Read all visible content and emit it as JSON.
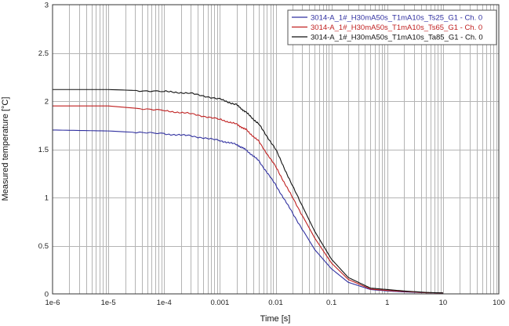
{
  "chart_data": {
    "type": "line",
    "title": "",
    "xlabel": "Time [s]",
    "ylabel": "Measured temperature [°C]",
    "x_scale": "log",
    "xlim": [
      1e-06,
      100
    ],
    "ylim": [
      0,
      3
    ],
    "grid": true,
    "legend_position": "top-right",
    "x_ticks": [
      {
        "v": 1e-06,
        "label": "1e-6"
      },
      {
        "v": 1e-05,
        "label": "1e-5"
      },
      {
        "v": 0.0001,
        "label": "1e-4"
      },
      {
        "v": 0.001,
        "label": "0.001"
      },
      {
        "v": 0.01,
        "label": "0.01"
      },
      {
        "v": 0.1,
        "label": "0.1"
      },
      {
        "v": 1,
        "label": "1"
      },
      {
        "v": 10,
        "label": "10"
      },
      {
        "v": 100,
        "label": "100"
      }
    ],
    "y_ticks": [
      {
        "v": 0,
        "label": "0"
      },
      {
        "v": 0.5,
        "label": "0.5"
      },
      {
        "v": 1,
        "label": "1"
      },
      {
        "v": 1.5,
        "label": "1.5"
      },
      {
        "v": 2,
        "label": "2"
      },
      {
        "v": 2.5,
        "label": "2.5"
      },
      {
        "v": 3,
        "label": "3"
      }
    ],
    "series": [
      {
        "name": "3014-A_1#_H30mA50s_T1mA10s_Ts25_G1 - Ch. 0",
        "color": "#3030a0",
        "points": [
          [
            1e-06,
            1.7
          ],
          [
            1e-05,
            1.69
          ],
          [
            0.0001,
            1.66
          ],
          [
            0.0003,
            1.64
          ],
          [
            0.001,
            1.59
          ],
          [
            0.002,
            1.55
          ],
          [
            0.003,
            1.49
          ],
          [
            0.005,
            1.38
          ],
          [
            0.01,
            1.13
          ],
          [
            0.02,
            0.84
          ],
          [
            0.05,
            0.46
          ],
          [
            0.1,
            0.26
          ],
          [
            0.2,
            0.12
          ],
          [
            0.5,
            0.045
          ],
          [
            1,
            0.03
          ],
          [
            2,
            0.02
          ],
          [
            5,
            0.012
          ],
          [
            10,
            0.01
          ]
        ]
      },
      {
        "name": "3014-A_1#_H30mA50s_T1mA10s_Ts65_G1 - Ch. 0",
        "color": "#c02020",
        "points": [
          [
            1e-06,
            1.95
          ],
          [
            1e-05,
            1.95
          ],
          [
            0.0001,
            1.9
          ],
          [
            0.0003,
            1.87
          ],
          [
            0.001,
            1.81
          ],
          [
            0.002,
            1.76
          ],
          [
            0.003,
            1.7
          ],
          [
            0.005,
            1.58
          ],
          [
            0.01,
            1.32
          ],
          [
            0.02,
            1.0
          ],
          [
            0.05,
            0.58
          ],
          [
            0.1,
            0.32
          ],
          [
            0.2,
            0.15
          ],
          [
            0.5,
            0.05
          ],
          [
            1,
            0.035
          ],
          [
            2,
            0.025
          ],
          [
            5,
            0.012
          ],
          [
            10,
            0.01
          ]
        ]
      },
      {
        "name": "3014-A_1#_H30mA50s_T1mA10s_Ta85_G1 - Ch. 0",
        "color": "#101010",
        "points": [
          [
            1e-06,
            2.12
          ],
          [
            1e-05,
            2.12
          ],
          [
            0.0001,
            2.1
          ],
          [
            0.0003,
            2.08
          ],
          [
            0.001,
            2.02
          ],
          [
            0.002,
            1.96
          ],
          [
            0.003,
            1.88
          ],
          [
            0.005,
            1.76
          ],
          [
            0.01,
            1.5
          ],
          [
            0.02,
            1.12
          ],
          [
            0.05,
            0.65
          ],
          [
            0.1,
            0.36
          ],
          [
            0.2,
            0.17
          ],
          [
            0.5,
            0.06
          ],
          [
            1,
            0.045
          ],
          [
            2,
            0.03
          ],
          [
            5,
            0.015
          ],
          [
            10,
            0.01
          ]
        ]
      }
    ]
  }
}
